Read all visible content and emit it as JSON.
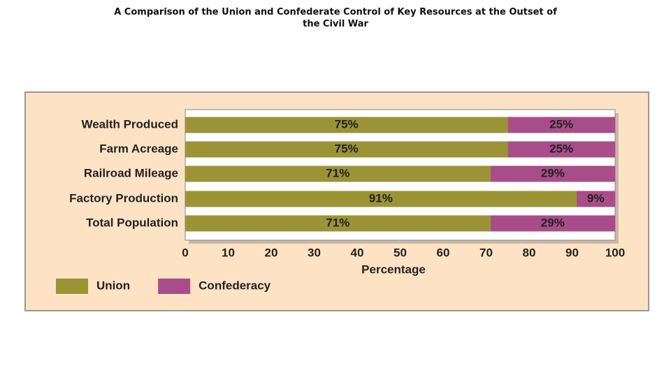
{
  "chart_data": {
    "type": "stacked-barh",
    "title": "A Comparison of the Union and Confederate Control of Key Resources at the Outset of the Civil War",
    "categories": [
      "Wealth Produced",
      "Farm Acreage",
      "Railroad Mileage",
      "Factory Production",
      "Total Population"
    ],
    "series": [
      {
        "name": "Union",
        "color": "#9a9436",
        "values": [
          75,
          75,
          71,
          91,
          71
        ],
        "value_labels": [
          "75%",
          "75%",
          "71%",
          "91%",
          "71%"
        ]
      },
      {
        "name": "Confederacy",
        "color": "#a84d8a",
        "values": [
          25,
          25,
          29,
          9,
          29
        ],
        "value_labels": [
          "25%",
          "25%",
          "29%",
          "9%",
          "29%"
        ]
      }
    ],
    "xlabel": "Percentage",
    "xlim": [
      0,
      100
    ],
    "xticks": [
      0,
      10,
      20,
      30,
      40,
      50,
      60,
      70,
      80,
      90,
      100
    ],
    "grid": false,
    "legend": "bottom-left"
  }
}
